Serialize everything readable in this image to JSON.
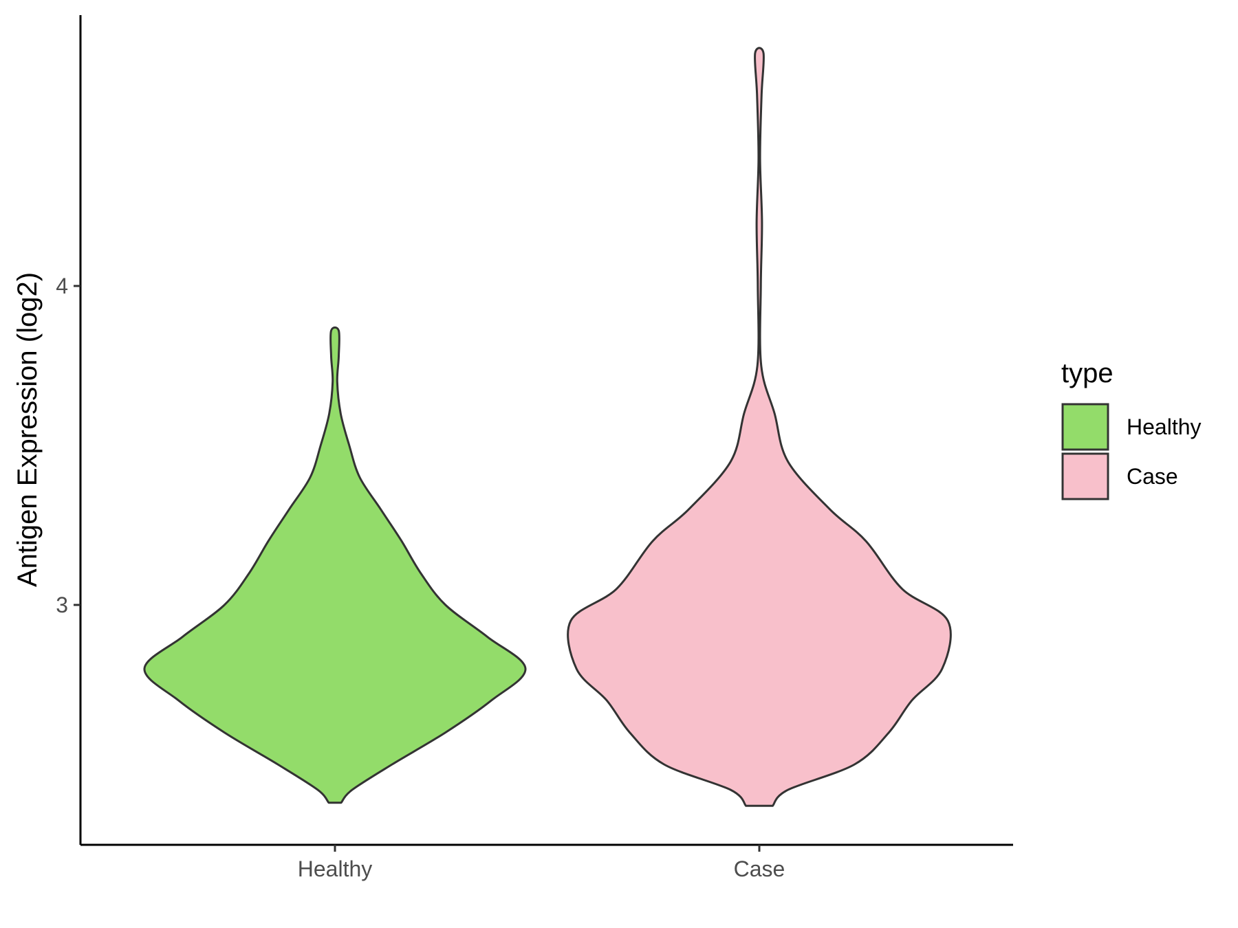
{
  "chart_data": {
    "type": "violin",
    "title": "",
    "xlabel": "",
    "ylabel": "Antigen Expression (log2)",
    "categories": [
      "Healthy",
      "Case"
    ],
    "yticks": [
      3,
      4
    ],
    "ylim": [
      2.25,
      4.85
    ],
    "grid": false,
    "legend": {
      "title": "type",
      "position": "right",
      "entries": [
        {
          "label": "Healthy",
          "color": "#93DC6A"
        },
        {
          "label": "Case",
          "color": "#F8C0CB"
        }
      ]
    },
    "series": [
      {
        "category": "Healthy",
        "color": "#93DC6A",
        "min": 2.38,
        "max": 3.86,
        "density_profile": [
          [
            2.38,
            0.033
          ],
          [
            2.42,
            0.09
          ],
          [
            2.5,
            0.3
          ],
          [
            2.6,
            0.58
          ],
          [
            2.7,
            0.82
          ],
          [
            2.8,
            1.0
          ],
          [
            2.9,
            0.8
          ],
          [
            3.0,
            0.58
          ],
          [
            3.1,
            0.45
          ],
          [
            3.2,
            0.35
          ],
          [
            3.3,
            0.24
          ],
          [
            3.4,
            0.13
          ],
          [
            3.5,
            0.075
          ],
          [
            3.6,
            0.03
          ],
          [
            3.7,
            0.012
          ],
          [
            3.78,
            0.02
          ],
          [
            3.86,
            0.02
          ]
        ]
      },
      {
        "category": "Case",
        "color": "#F8C0CB",
        "min": 2.37,
        "max": 4.73,
        "density_profile": [
          [
            2.37,
            0.07
          ],
          [
            2.42,
            0.15
          ],
          [
            2.5,
            0.5
          ],
          [
            2.6,
            0.68
          ],
          [
            2.7,
            0.8
          ],
          [
            2.8,
            0.96
          ],
          [
            2.95,
            0.99
          ],
          [
            3.05,
            0.75
          ],
          [
            3.2,
            0.56
          ],
          [
            3.3,
            0.37
          ],
          [
            3.45,
            0.15
          ],
          [
            3.6,
            0.08
          ],
          [
            3.75,
            0.01
          ],
          [
            4.0,
            0.008
          ],
          [
            4.2,
            0.014
          ],
          [
            4.4,
            0.004
          ],
          [
            4.6,
            0.012
          ],
          [
            4.73,
            0.022
          ]
        ]
      }
    ]
  }
}
